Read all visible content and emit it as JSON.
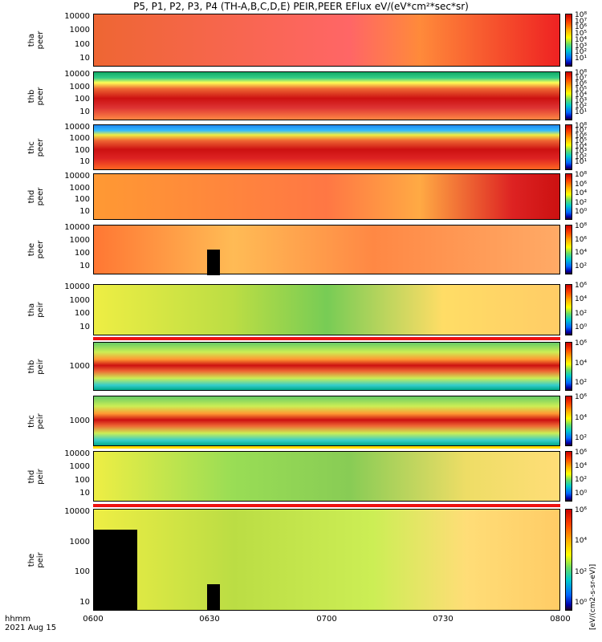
{
  "chart_data": {
    "type": "heatmap",
    "title": "P5, P1, P2, P3, P4 (TH-A,B,C,D,E) PEIR,PEER EFlux eV/(eV*cm²*sec*sr)",
    "x_label": "hhmm",
    "date_label": "2021 Aug 15",
    "x_ticks": [
      "0600",
      "0630",
      "0700",
      "0730",
      "0800"
    ],
    "colorbar_label": "[eV/(cm2-s-sr-eV)]",
    "panels": [
      {
        "label": "tha\npeer",
        "y_ticks": [
          "10000",
          "1000",
          "100",
          "10"
        ],
        "cbar_ticks": [
          "10⁸",
          "10⁷",
          "10⁶",
          "10⁵",
          "10⁴",
          "10³",
          "10²",
          "10¹"
        ]
      },
      {
        "label": "thb\npeer",
        "y_ticks": [
          "10000",
          "1000",
          "100",
          "10"
        ],
        "cbar_ticks": [
          "10⁸",
          "10⁷",
          "10⁶",
          "10⁵",
          "10⁴",
          "10³",
          "10²",
          "10¹"
        ]
      },
      {
        "label": "thc\npeer",
        "y_ticks": [
          "10000",
          "1000",
          "100",
          "10"
        ],
        "cbar_ticks": [
          "10⁸",
          "10⁷",
          "10⁶",
          "10⁵",
          "10⁴",
          "10³",
          "10²",
          "10¹"
        ]
      },
      {
        "label": "thd\npeer",
        "y_ticks": [
          "10000",
          "1000",
          "100",
          "10"
        ],
        "cbar_ticks": [
          "10⁸",
          "10⁶",
          "10⁴",
          "10²",
          "10⁰"
        ]
      },
      {
        "label": "the\npeer",
        "y_ticks": [
          "10000",
          "1000",
          "100",
          "10"
        ],
        "cbar_ticks": [
          "10⁸",
          "10⁶",
          "10⁴",
          "10²"
        ]
      },
      {
        "label": "tha\npeir",
        "y_ticks": [
          "10000",
          "1000",
          "100",
          "10"
        ],
        "cbar_ticks": [
          "10⁶",
          "10⁴",
          "10²",
          "10⁰"
        ]
      },
      {
        "label": "thb\npeir",
        "y_ticks": [
          "1000"
        ],
        "cbar_ticks": [
          "10⁶",
          "10⁴",
          "10²"
        ]
      },
      {
        "label": "thc\npeir",
        "y_ticks": [
          "1000"
        ],
        "cbar_ticks": [
          "10⁶",
          "10⁴",
          "10²"
        ]
      },
      {
        "label": "thd\npeir",
        "y_ticks": [
          "10000",
          "1000",
          "100",
          "10"
        ],
        "cbar_ticks": [
          "10⁶",
          "10⁴",
          "10²",
          "10⁰"
        ]
      },
      {
        "label": "the\npeir",
        "y_ticks": [
          "10000",
          "1000",
          "100",
          "10"
        ],
        "cbar_ticks": [
          "10⁶",
          "10⁴",
          "10²",
          "10⁰"
        ]
      }
    ]
  }
}
